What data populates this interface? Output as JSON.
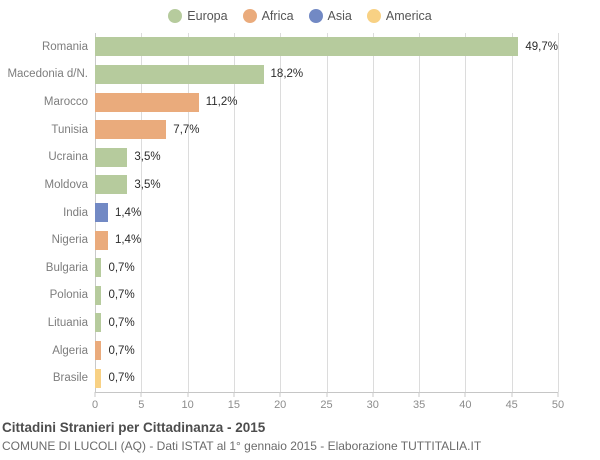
{
  "chart_data": {
    "type": "bar",
    "orientation": "horizontal",
    "title": "Cittadini Stranieri per Cittadinanza - 2015",
    "subtitle": "COMUNE DI LUCOLI (AQ) - Dati ISTAT al 1° gennaio 2015 - Elaborazione TUTTITALIA.IT",
    "xlabel": "",
    "ylabel": "",
    "xlim": [
      0,
      50
    ],
    "xticks": [
      0,
      5,
      10,
      15,
      20,
      25,
      30,
      35,
      40,
      45,
      50
    ],
    "grid": true,
    "legend_position": "top",
    "legend": [
      {
        "label": "Europa",
        "color": "#b6cb9d"
      },
      {
        "label": "Africa",
        "color": "#eaab7c"
      },
      {
        "label": "Asia",
        "color": "#7289c4"
      },
      {
        "label": "America",
        "color": "#f8d184"
      }
    ],
    "rows": [
      {
        "category": "Romania",
        "value": 49.7,
        "label": "49,7%",
        "group": "Europa"
      },
      {
        "category": "Macedonia d/N.",
        "value": 18.2,
        "label": "18,2%",
        "group": "Europa"
      },
      {
        "category": "Marocco",
        "value": 11.2,
        "label": "11,2%",
        "group": "Africa"
      },
      {
        "category": "Tunisia",
        "value": 7.7,
        "label": "7,7%",
        "group": "Africa"
      },
      {
        "category": "Ucraina",
        "value": 3.5,
        "label": "3,5%",
        "group": "Europa"
      },
      {
        "category": "Moldova",
        "value": 3.5,
        "label": "3,5%",
        "group": "Europa"
      },
      {
        "category": "India",
        "value": 1.4,
        "label": "1,4%",
        "group": "Asia"
      },
      {
        "category": "Nigeria",
        "value": 1.4,
        "label": "1,4%",
        "group": "Africa"
      },
      {
        "category": "Bulgaria",
        "value": 0.7,
        "label": "0,7%",
        "group": "Europa"
      },
      {
        "category": "Polonia",
        "value": 0.7,
        "label": "0,7%",
        "group": "Europa"
      },
      {
        "category": "Lituania",
        "value": 0.7,
        "label": "0,7%",
        "group": "Europa"
      },
      {
        "category": "Algeria",
        "value": 0.7,
        "label": "0,7%",
        "group": "Africa"
      },
      {
        "category": "Brasile",
        "value": 0.7,
        "label": "0,7%",
        "group": "America"
      }
    ]
  }
}
